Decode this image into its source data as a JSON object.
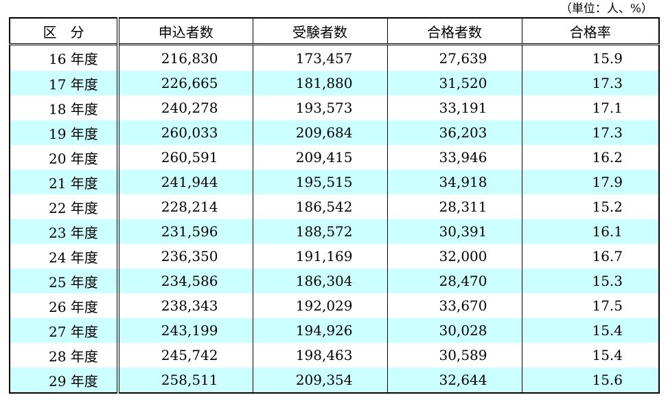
{
  "unit_note": "（単位：人、%）",
  "headers": [
    "区　分",
    "申込者数",
    "受験者数",
    "合格者数",
    "合格率"
  ],
  "colors": {
    "stripe": "#ccffff",
    "background": "#ffffff",
    "border": "#000000"
  },
  "rows": [
    {
      "year": "16 年度",
      "applicants": "216,830",
      "examinees": "173,457",
      "passers": "27,639",
      "rate": "15.9"
    },
    {
      "year": "17 年度",
      "applicants": "226,665",
      "examinees": "181,880",
      "passers": "31,520",
      "rate": "17.3"
    },
    {
      "year": "18 年度",
      "applicants": "240,278",
      "examinees": "193,573",
      "passers": "33,191",
      "rate": "17.1"
    },
    {
      "year": "19 年度",
      "applicants": "260,033",
      "examinees": "209,684",
      "passers": "36,203",
      "rate": "17.3"
    },
    {
      "year": "20 年度",
      "applicants": "260,591",
      "examinees": "209,415",
      "passers": "33,946",
      "rate": "16.2"
    },
    {
      "year": "21 年度",
      "applicants": "241,944",
      "examinees": "195,515",
      "passers": "34,918",
      "rate": "17.9"
    },
    {
      "year": "22 年度",
      "applicants": "228,214",
      "examinees": "186,542",
      "passers": "28,311",
      "rate": "15.2"
    },
    {
      "year": "23 年度",
      "applicants": "231,596",
      "examinees": "188,572",
      "passers": "30,391",
      "rate": "16.1"
    },
    {
      "year": "24 年度",
      "applicants": "236,350",
      "examinees": "191,169",
      "passers": "32,000",
      "rate": "16.7"
    },
    {
      "year": "25 年度",
      "applicants": "234,586",
      "examinees": "186,304",
      "passers": "28,470",
      "rate": "15.3"
    },
    {
      "year": "26 年度",
      "applicants": "238,343",
      "examinees": "192,029",
      "passers": "33,670",
      "rate": "17.5"
    },
    {
      "year": "27 年度",
      "applicants": "243,199",
      "examinees": "194,926",
      "passers": "30,028",
      "rate": "15.4"
    },
    {
      "year": "28 年度",
      "applicants": "245,742",
      "examinees": "198,463",
      "passers": "30,589",
      "rate": "15.4"
    },
    {
      "year": "29 年度",
      "applicants": "258,511",
      "examinees": "209,354",
      "passers": "32,644",
      "rate": "15.6"
    }
  ]
}
